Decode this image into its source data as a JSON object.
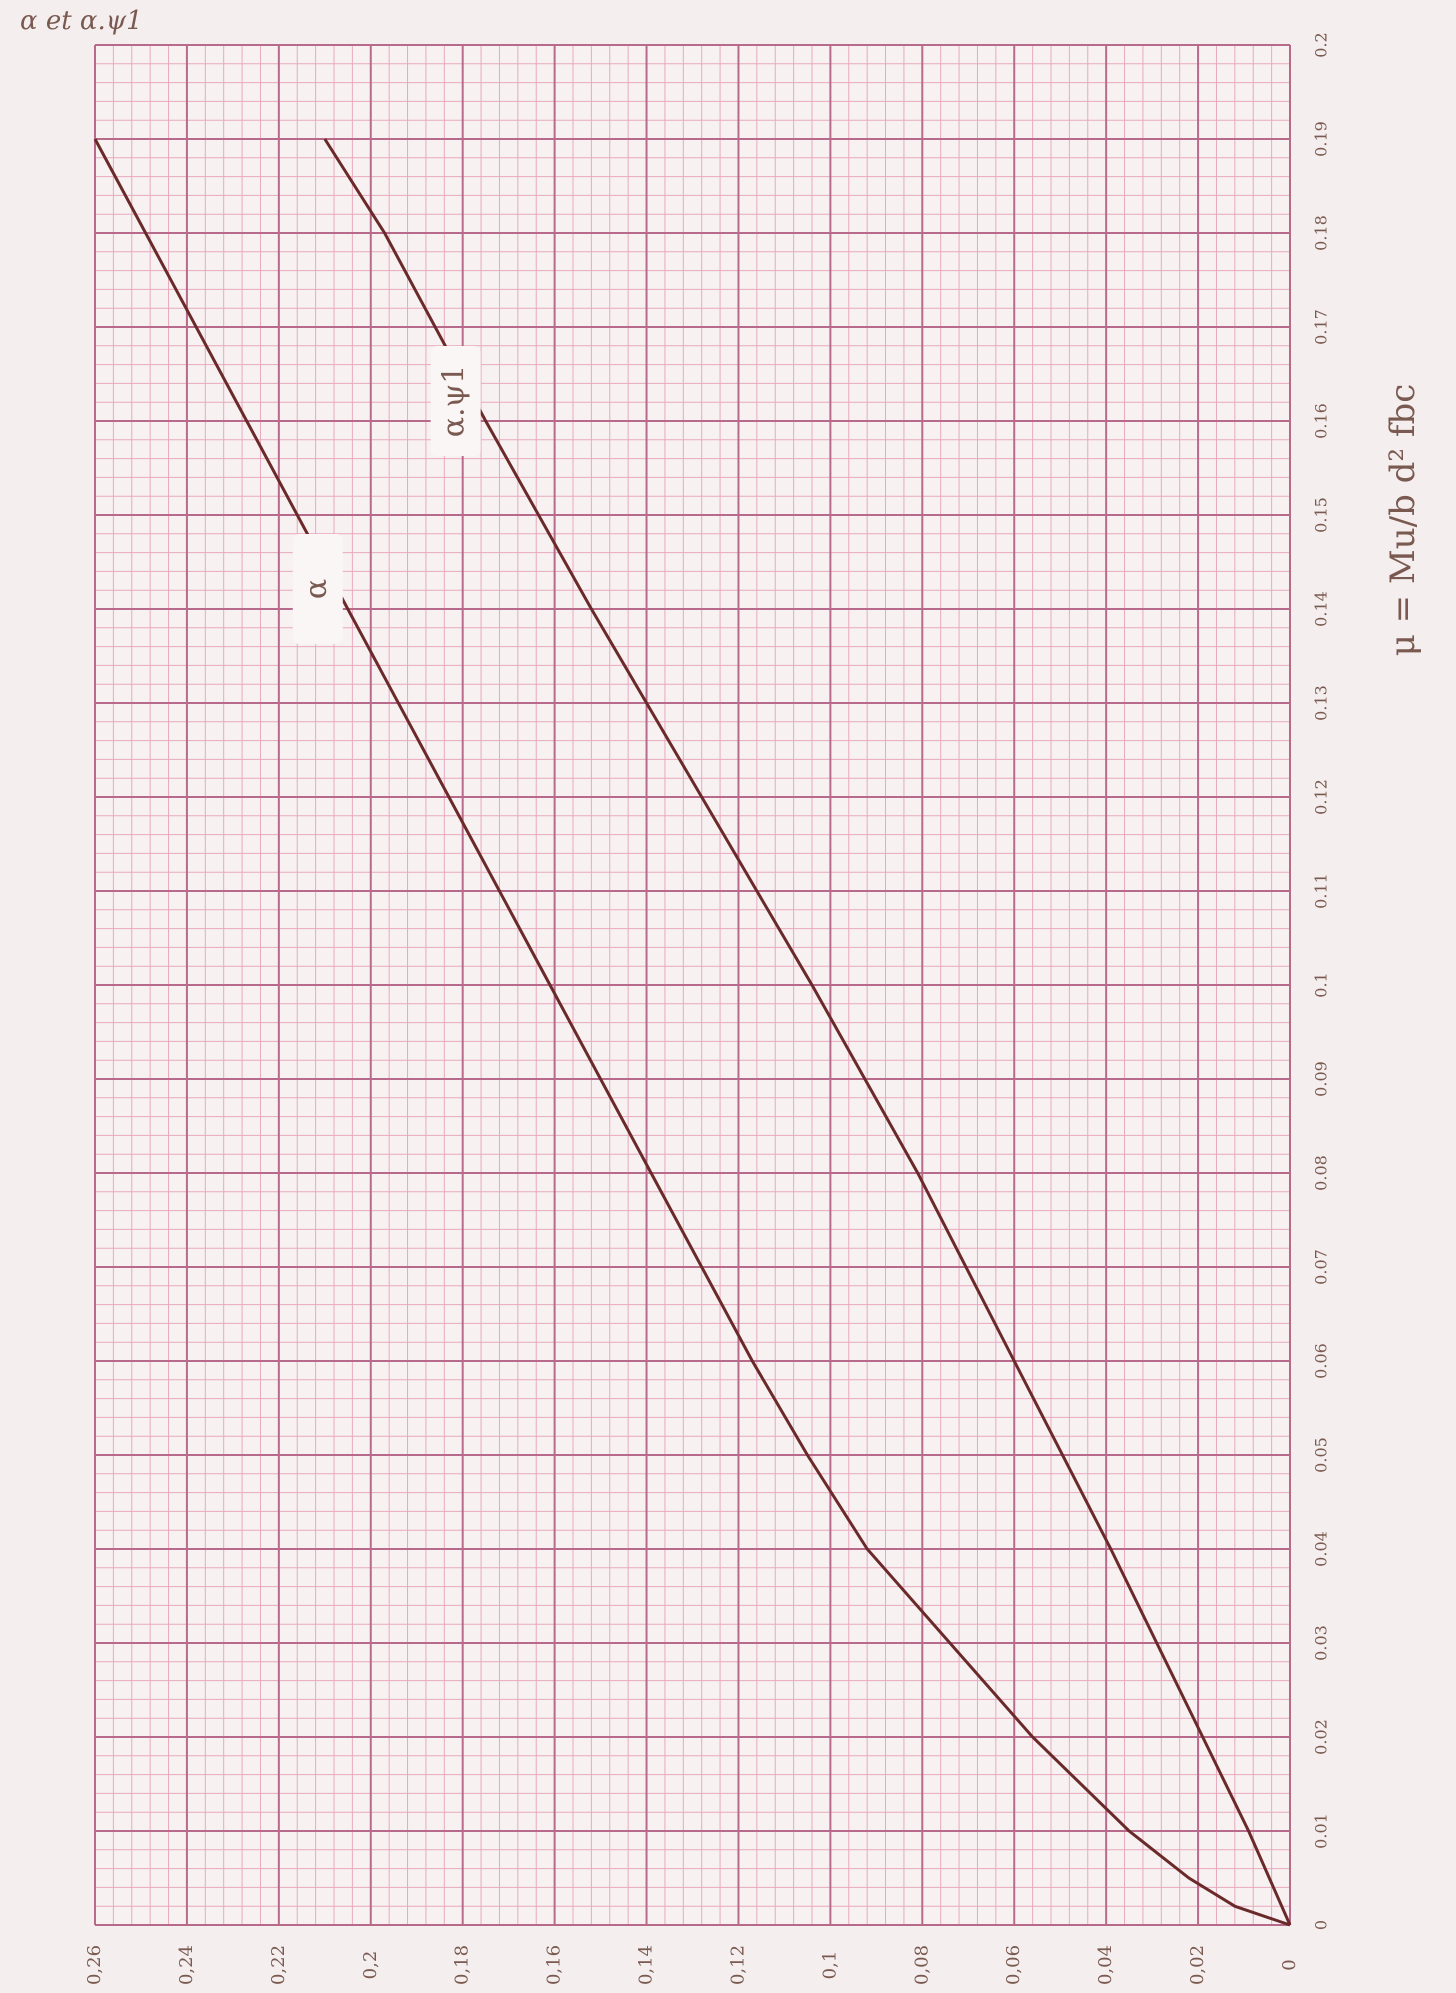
{
  "chart_data": {
    "type": "line",
    "x_label": "μ = Mu/b d² fbc",
    "y_label": "α et α.ψ1",
    "xlim": [
      0,
      0.2
    ],
    "xticks": [
      0,
      0.01,
      0.02,
      0.03,
      0.04,
      0.05,
      0.06,
      0.07,
      0.08,
      0.09,
      0.1,
      0.11,
      0.12,
      0.13,
      0.14,
      0.15,
      0.16,
      0.17,
      0.18,
      0.19,
      0.2
    ],
    "ylim": [
      0,
      0.26
    ],
    "yticks": [
      0,
      {
        "value": 0.02,
        "label": "0,02"
      },
      {
        "value": 0.04,
        "label": "0,04"
      },
      {
        "value": 0.06,
        "label": "0,06"
      },
      {
        "value": 0.08,
        "label": "0,08"
      },
      {
        "value": 0.1,
        "label": "0,1"
      },
      {
        "value": 0.12,
        "label": "0,12"
      },
      {
        "value": 0.14,
        "label": "0,14"
      },
      {
        "value": 0.16,
        "label": "0,16"
      },
      {
        "value": 0.18,
        "label": "0,18"
      },
      {
        "value": 0.2,
        "label": "0,2"
      },
      {
        "value": 0.22,
        "label": "0,22"
      },
      {
        "value": 0.24,
        "label": "0,24"
      },
      {
        "value": 0.26,
        "label": "0,26"
      }
    ],
    "grid": true,
    "series": [
      {
        "name": "α",
        "color": "#6b2a2a",
        "x": [
          0,
          0.002,
          0.005,
          0.01,
          0.02,
          0.03,
          0.04,
          0.05,
          0.06,
          0.08,
          0.1,
          0.12,
          0.14,
          0.16,
          0.18,
          0.19
        ],
        "values": [
          0,
          0.012,
          0.022,
          0.035,
          0.056,
          0.074,
          0.092,
          0.105,
          0.117,
          0.139,
          0.161,
          0.183,
          0.205,
          0.227,
          0.249,
          0.26
        ]
      },
      {
        "name": "α.ψ1",
        "color": "#6b2a2a",
        "x": [
          0,
          0.01,
          0.02,
          0.04,
          0.06,
          0.08,
          0.1,
          0.12,
          0.14,
          0.16,
          0.18,
          0.19
        ],
        "values": [
          0,
          0.009,
          0.019,
          0.039,
          0.06,
          0.081,
          0.104,
          0.128,
          0.152,
          0.175,
          0.197,
          0.21
        ]
      }
    ]
  }
}
